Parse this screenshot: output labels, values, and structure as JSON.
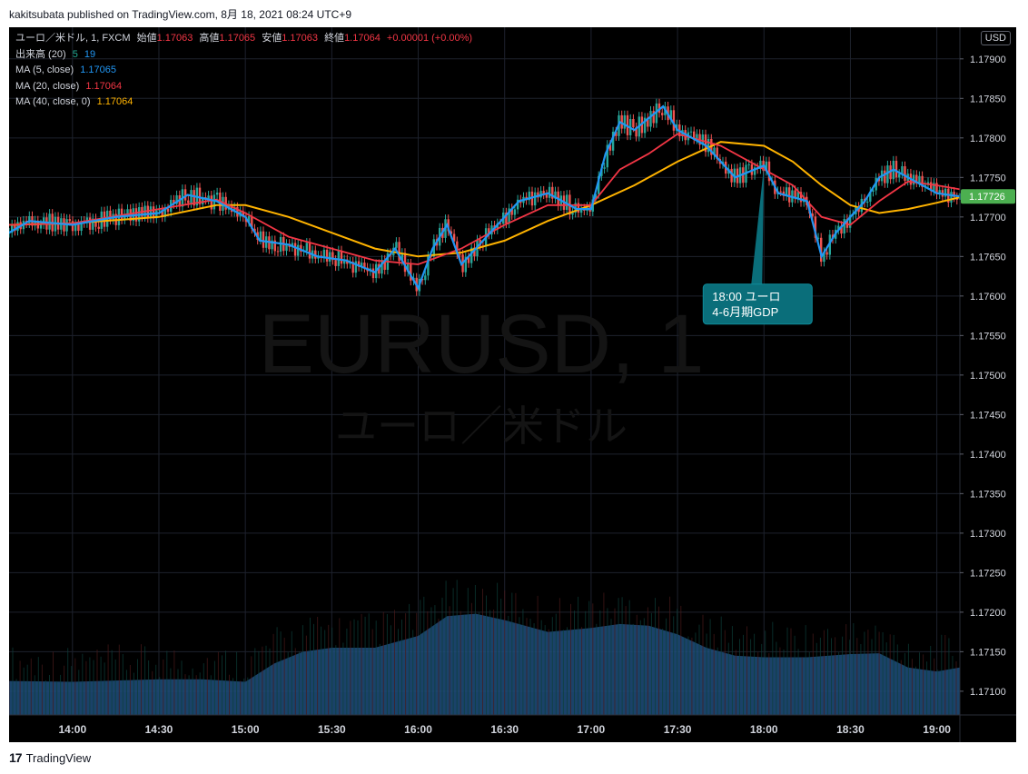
{
  "header": {
    "publish_line": "kakitsubata published on TradingView.com, 8月 18, 2021 08:24 UTC+9"
  },
  "legend": {
    "symbol": "ユーロ／米ドル, 1, FXCM",
    "open_label": "始値",
    "open": "1.17063",
    "high_label": "高値",
    "high": "1.17065",
    "low_label": "安値",
    "low": "1.17063",
    "close_label": "終値",
    "close": "1.17064",
    "change": "+0.00001 (+0.00%)",
    "volume_label": "出来高 (20)",
    "volume_a": "5",
    "volume_b": "19",
    "ma5_label": "MA (5, close)",
    "ma5_value": "1.17065",
    "ma20_label": "MA (20, close)",
    "ma20_value": "1.17064",
    "ma40_label": "MA (40, close, 0)",
    "ma40_value": "1.17064"
  },
  "currency_badge": "USD",
  "watermark": {
    "line1": "EURUSD, 1",
    "line2": "ユーロ／米ドル"
  },
  "annotation": {
    "line1": "18:00 ユーロ",
    "line2": "4-6月期GDP"
  },
  "last_price": "1.17726",
  "footer": {
    "brand": "TradingView"
  },
  "colors": {
    "up": "#26a69a",
    "down": "#ef5350",
    "ma5": "#2196f3",
    "ma20": "#f23645",
    "ma40": "#ffb300",
    "volume_area": "#1e4d7b",
    "annotation_bg": "#0a6e7a",
    "last_price_bg": "#4caf50"
  },
  "chart_data": {
    "type": "line",
    "title": "ユーロ／米ドル, 1, FXCM",
    "ylim": [
      1.1707,
      1.1794
    ],
    "y_ticks": [
      "1.17900",
      "1.17850",
      "1.17800",
      "1.17750",
      "1.17700",
      "1.17650",
      "1.17600",
      "1.17550",
      "1.17500",
      "1.17450",
      "1.17400",
      "1.17350",
      "1.17300",
      "1.17250",
      "1.17200",
      "1.17150",
      "1.17100"
    ],
    "x_ticks": [
      "14:00",
      "14:30",
      "15:00",
      "15:30",
      "16:00",
      "16:30",
      "17:00",
      "17:30",
      "18:00",
      "18:30",
      "19:00"
    ],
    "x_time_range": [
      "13:38",
      "19:08"
    ],
    "series": [
      {
        "name": "MA (5, close)",
        "x": [
          "13:38",
          "13:45",
          "14:00",
          "14:15",
          "14:30",
          "14:40",
          "14:50",
          "15:00",
          "15:05",
          "15:15",
          "15:25",
          "15:35",
          "15:45",
          "15:52",
          "16:00",
          "16:05",
          "16:10",
          "16:15",
          "16:25",
          "16:35",
          "16:45",
          "16:55",
          "17:00",
          "17:05",
          "17:10",
          "17:15",
          "17:25",
          "17:30",
          "17:40",
          "17:50",
          "18:00",
          "18:05",
          "18:15",
          "18:20",
          "18:25",
          "18:30",
          "18:35",
          "18:40",
          "18:45",
          "18:50",
          "19:00",
          "19:08"
        ],
        "y": [
          1.1768,
          1.17695,
          1.1769,
          1.177,
          1.17705,
          1.17728,
          1.1772,
          1.177,
          1.1767,
          1.17665,
          1.1765,
          1.17645,
          1.1763,
          1.1766,
          1.1761,
          1.1766,
          1.1769,
          1.1764,
          1.1768,
          1.1772,
          1.1773,
          1.1771,
          1.1771,
          1.1778,
          1.1782,
          1.1781,
          1.1784,
          1.1781,
          1.1779,
          1.1775,
          1.17765,
          1.1773,
          1.1772,
          1.1765,
          1.1768,
          1.177,
          1.1772,
          1.1775,
          1.1776,
          1.1775,
          1.1773,
          1.17726
        ]
      },
      {
        "name": "MA (20, close)",
        "x": [
          "13:38",
          "14:00",
          "14:30",
          "14:50",
          "15:00",
          "15:15",
          "15:30",
          "15:45",
          "16:00",
          "16:15",
          "16:30",
          "16:45",
          "17:00",
          "17:10",
          "17:20",
          "17:30",
          "17:45",
          "18:00",
          "18:10",
          "18:20",
          "18:30",
          "18:40",
          "18:50",
          "19:00",
          "19:08"
        ],
        "y": [
          1.1769,
          1.17692,
          1.1771,
          1.17722,
          1.17705,
          1.17675,
          1.1766,
          1.17645,
          1.1764,
          1.1766,
          1.1769,
          1.17715,
          1.17715,
          1.1776,
          1.1778,
          1.17805,
          1.1779,
          1.1776,
          1.1774,
          1.177,
          1.1769,
          1.1772,
          1.17745,
          1.1774,
          1.17735
        ]
      },
      {
        "name": "MA (40, close, 0)",
        "x": [
          "13:38",
          "14:00",
          "14:30",
          "14:50",
          "15:00",
          "15:15",
          "15:30",
          "15:45",
          "16:00",
          "16:15",
          "16:30",
          "16:45",
          "17:00",
          "17:15",
          "17:30",
          "17:45",
          "18:00",
          "18:10",
          "18:20",
          "18:30",
          "18:40",
          "18:50",
          "19:00",
          "19:08"
        ],
        "y": [
          1.1769,
          1.17692,
          1.177,
          1.17715,
          1.17715,
          1.177,
          1.1768,
          1.1766,
          1.1765,
          1.17655,
          1.1767,
          1.17695,
          1.17715,
          1.1774,
          1.1777,
          1.17795,
          1.1779,
          1.1777,
          1.1774,
          1.17715,
          1.17705,
          1.1771,
          1.17718,
          1.17725
        ]
      },
      {
        "name": "出来高 (20)",
        "x": [
          "13:38",
          "14:00",
          "14:30",
          "14:45",
          "15:00",
          "15:10",
          "15:20",
          "15:30",
          "15:45",
          "16:00",
          "16:10",
          "16:20",
          "16:30",
          "16:45",
          "17:00",
          "17:10",
          "17:20",
          "17:30",
          "17:40",
          "17:50",
          "18:00",
          "18:15",
          "18:30",
          "18:40",
          "18:50",
          "19:00",
          "19:08"
        ],
        "y": [
          1.17113,
          1.17112,
          1.17115,
          1.17115,
          1.17112,
          1.17135,
          1.1715,
          1.17155,
          1.17155,
          1.1717,
          1.17195,
          1.17198,
          1.1719,
          1.17175,
          1.1718,
          1.17185,
          1.17183,
          1.17172,
          1.17155,
          1.17145,
          1.17143,
          1.17143,
          1.17147,
          1.17148,
          1.1713,
          1.17125,
          1.1713
        ]
      }
    ]
  }
}
